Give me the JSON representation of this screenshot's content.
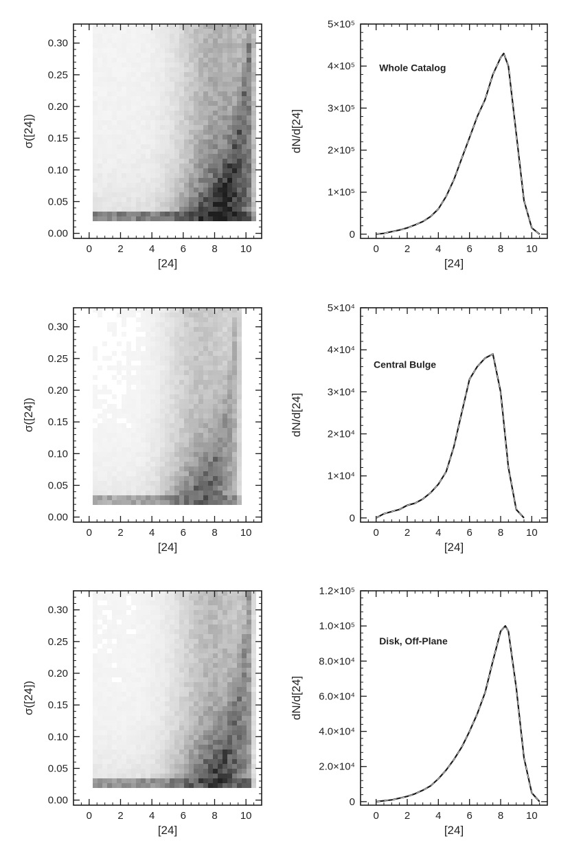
{
  "colors": {
    "ink": "#1a1a1a",
    "background": "#ffffff"
  },
  "chart_data": [
    {
      "type": "heatmap",
      "title": "",
      "xlabel": "[24]",
      "ylabel": "σ([24])",
      "xlim": [
        -1.0,
        11.0
      ],
      "ylim": [
        -0.008,
        0.33
      ],
      "xticks": [
        0,
        2,
        4,
        6,
        8,
        10
      ],
      "xtick_labels": [
        "0",
        "2",
        "4",
        "6",
        "8",
        "10"
      ],
      "yticks": [
        0.0,
        0.05,
        0.1,
        0.15,
        0.2,
        0.25,
        0.3
      ],
      "ytick_labels": [
        "0.00",
        "0.05",
        "0.10",
        "0.15",
        "0.20",
        "0.25",
        "0.30"
      ],
      "density": {
        "center_x": 8.2,
        "spread_x": 2.4,
        "floor": 0.025,
        "max_x": 10.3,
        "strength": 1.0
      }
    },
    {
      "type": "line",
      "title": "",
      "annotation": "Whole Catalog",
      "xlabel": "[24]",
      "ylabel": "dN/d[24]",
      "xlim": [
        -1.0,
        11.0
      ],
      "ylim": [
        -10000,
        500000
      ],
      "xticks": [
        0,
        2,
        4,
        6,
        8,
        10
      ],
      "xtick_labels": [
        "0",
        "2",
        "4",
        "6",
        "8",
        "10"
      ],
      "yticks": [
        0,
        100000,
        200000,
        300000,
        400000,
        500000
      ],
      "ytick_labels": [
        "0",
        "1×10⁵",
        "2×10⁵",
        "3×10⁵",
        "4×10⁵",
        "5×10⁵"
      ],
      "series": [
        {
          "x": [
            0,
            0.5,
            1,
            1.5,
            2,
            2.5,
            3,
            3.5,
            4,
            4.5,
            5,
            5.5,
            6,
            6.5,
            7,
            7.5,
            8,
            8.2,
            8.5,
            9,
            9.5,
            10,
            10.5
          ],
          "y": [
            0,
            2000,
            6000,
            10000,
            15000,
            22000,
            30000,
            42000,
            60000,
            90000,
            130000,
            180000,
            230000,
            280000,
            320000,
            380000,
            420000,
            430000,
            400000,
            240000,
            80000,
            15000,
            0
          ]
        }
      ]
    },
    {
      "type": "heatmap",
      "title": "",
      "xlabel": "[24]",
      "ylabel": "σ([24])",
      "xlim": [
        -1.0,
        11.0
      ],
      "ylim": [
        -0.008,
        0.33
      ],
      "xticks": [
        0,
        2,
        4,
        6,
        8,
        10
      ],
      "xtick_labels": [
        "0",
        "2",
        "4",
        "6",
        "8",
        "10"
      ],
      "yticks": [
        0.0,
        0.05,
        0.1,
        0.15,
        0.2,
        0.25,
        0.3
      ],
      "ytick_labels": [
        "0.00",
        "0.05",
        "0.10",
        "0.15",
        "0.20",
        "0.25",
        "0.30"
      ],
      "density": {
        "center_x": 7.2,
        "spread_x": 2.2,
        "floor": 0.025,
        "max_x": 9.4,
        "strength": 0.7
      }
    },
    {
      "type": "line",
      "title": "",
      "annotation": "Central Bulge",
      "xlabel": "[24]",
      "ylabel": "dN/d[24]",
      "xlim": [
        -1.0,
        11.0
      ],
      "ylim": [
        -1000,
        50000
      ],
      "xticks": [
        0,
        2,
        4,
        6,
        8,
        10
      ],
      "xtick_labels": [
        "0",
        "2",
        "4",
        "6",
        "8",
        "10"
      ],
      "yticks": [
        0,
        10000,
        20000,
        30000,
        40000,
        50000
      ],
      "ytick_labels": [
        "0",
        "1×10⁴",
        "2×10⁴",
        "3×10⁴",
        "4×10⁴",
        "5×10⁴"
      ],
      "series": [
        {
          "x": [
            0,
            0.5,
            1,
            1.5,
            2,
            2.5,
            3,
            3.5,
            4,
            4.5,
            5,
            5.5,
            6,
            6.5,
            7,
            7.5,
            8,
            8.5,
            9,
            9.5
          ],
          "y": [
            0,
            1000,
            1500,
            2000,
            3000,
            3500,
            4500,
            6000,
            8000,
            11000,
            17000,
            25000,
            33000,
            36000,
            38000,
            39000,
            30000,
            12000,
            2000,
            0
          ]
        }
      ]
    },
    {
      "type": "heatmap",
      "title": "",
      "xlabel": "[24]",
      "ylabel": "σ([24])",
      "xlim": [
        -1.0,
        11.0
      ],
      "ylim": [
        -0.008,
        0.33
      ],
      "xticks": [
        0,
        2,
        4,
        6,
        8,
        10
      ],
      "xtick_labels": [
        "0",
        "2",
        "4",
        "6",
        "8",
        "10"
      ],
      "yticks": [
        0.0,
        0.05,
        0.1,
        0.15,
        0.2,
        0.25,
        0.3
      ],
      "ytick_labels": [
        "0.00",
        "0.05",
        "0.10",
        "0.15",
        "0.20",
        "0.25",
        "0.30"
      ],
      "density": {
        "center_x": 8.0,
        "spread_x": 2.4,
        "floor": 0.025,
        "max_x": 10.2,
        "strength": 0.85
      }
    },
    {
      "type": "line",
      "title": "",
      "annotation": "Disk, Off-Plane",
      "xlabel": "[24]",
      "ylabel": "dN/d[24]",
      "xlim": [
        -1.0,
        11.0
      ],
      "ylim": [
        -2000,
        120000
      ],
      "xticks": [
        0,
        2,
        4,
        6,
        8,
        10
      ],
      "xtick_labels": [
        "0",
        "2",
        "4",
        "6",
        "8",
        "10"
      ],
      "yticks": [
        0,
        20000,
        40000,
        60000,
        80000,
        100000,
        120000
      ],
      "ytick_labels": [
        "0",
        "2.0×10⁴",
        "4.0×10⁴",
        "6.0×10⁴",
        "8.0×10⁴",
        "1.0×10⁵",
        "1.2×10⁵"
      ],
      "series": [
        {
          "x": [
            0,
            0.5,
            1,
            1.5,
            2,
            2.5,
            3,
            3.5,
            4,
            4.5,
            5,
            5.5,
            6,
            6.5,
            7,
            7.5,
            8,
            8.3,
            8.5,
            9,
            9.5,
            10,
            10.5
          ],
          "y": [
            0,
            500,
            1000,
            2000,
            3000,
            4500,
            6500,
            9000,
            13000,
            18000,
            24000,
            31000,
            40000,
            50000,
            62000,
            80000,
            97000,
            100000,
            97000,
            65000,
            25000,
            5000,
            0
          ]
        }
      ]
    }
  ]
}
